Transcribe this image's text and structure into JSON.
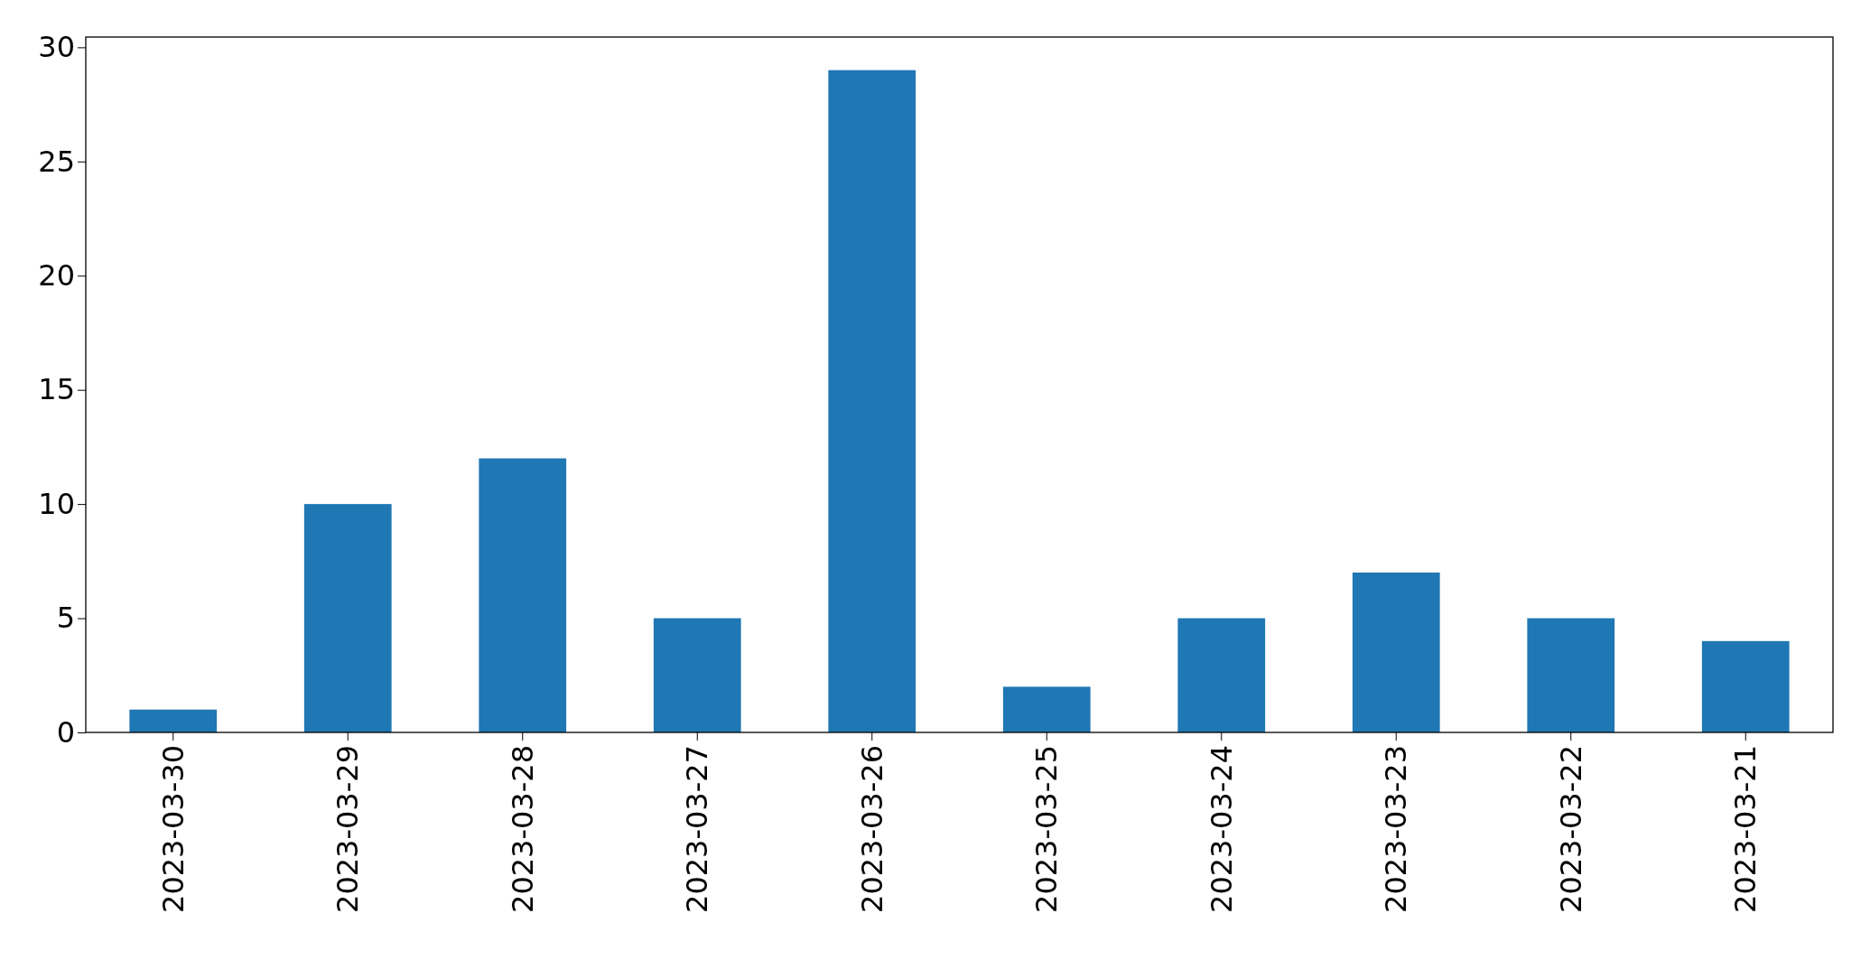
{
  "chart_data": {
    "type": "bar",
    "categories": [
      "2023-03-30",
      "2023-03-29",
      "2023-03-28",
      "2023-03-27",
      "2023-03-26",
      "2023-03-25",
      "2023-03-24",
      "2023-03-23",
      "2023-03-22",
      "2023-03-21"
    ],
    "values": [
      1,
      10,
      12,
      5,
      29,
      2,
      5,
      7,
      5,
      4
    ],
    "color": "#1f77b4",
    "ylim": [
      0,
      30.45
    ],
    "yticks": [
      0,
      5,
      10,
      15,
      20,
      25,
      30
    ],
    "grid": false
  }
}
